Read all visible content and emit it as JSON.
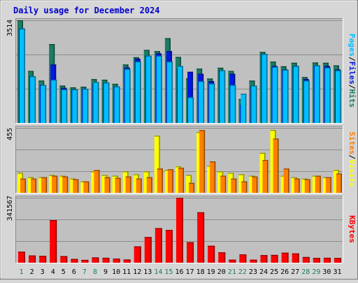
{
  "chart_data": [
    {
      "type": "bar",
      "title": "Daily usage for December 2024",
      "categories": [
        "1",
        "2",
        "3",
        "4",
        "5",
        "6",
        "7",
        "8",
        "9",
        "10",
        "11",
        "12",
        "13",
        "14",
        "15",
        "16",
        "17",
        "18",
        "19",
        "20",
        "21",
        "22",
        "23",
        "24",
        "25",
        "26",
        "27",
        "28",
        "29",
        "30",
        "31"
      ],
      "weekend_days": [
        "1",
        "7",
        "8",
        "14",
        "15",
        "21",
        "22",
        "28",
        "29"
      ],
      "ymax_label": "3514",
      "ylim": [
        0,
        3514
      ],
      "legend": [
        "Pages",
        "Files",
        "Hits"
      ],
      "series": [
        {
          "name": "Hits",
          "color": "#1b7c62",
          "values": [
            3514,
            1780,
            1450,
            2700,
            1280,
            1220,
            1240,
            1500,
            1480,
            1340,
            2000,
            2250,
            2500,
            2460,
            2900,
            2260,
            1530,
            1860,
            1520,
            1890,
            1780,
            820,
            1450,
            2430,
            2100,
            1940,
            2060,
            1570,
            2070,
            2060,
            1970
          ]
        },
        {
          "name": "Files",
          "color": "#0018e0",
          "values": [
            3230,
            1600,
            1300,
            2000,
            1200,
            1150,
            1170,
            1350,
            1380,
            1250,
            1900,
            2200,
            2300,
            2380,
            2460,
            1860,
            1750,
            1680,
            1430,
            1800,
            1680,
            620,
            1250,
            2360,
            1950,
            1830,
            1950,
            1500,
            1960,
            1950,
            1830
          ]
        },
        {
          "name": "Pages",
          "color": "#00bfff",
          "values": [
            3230,
            1600,
            1300,
            1480,
            1150,
            1150,
            1170,
            1400,
            1380,
            1250,
            1850,
            2100,
            2300,
            2300,
            2100,
            1950,
            880,
            1430,
            1350,
            1800,
            1300,
            1000,
            1280,
            2360,
            1920,
            1820,
            1950,
            1450,
            1970,
            1900,
            1800
          ]
        }
      ]
    },
    {
      "type": "bar",
      "ymax_label": "455",
      "ylim": [
        0,
        455
      ],
      "legend": [
        "Sites",
        "Visits"
      ],
      "series": [
        {
          "name": "Visits",
          "color": "#ffff00",
          "values": [
            140,
            110,
            110,
            125,
            120,
            100,
            80,
            150,
            125,
            120,
            150,
            130,
            150,
            400,
            160,
            185,
            125,
            425,
            190,
            150,
            140,
            130,
            120,
            280,
            440,
            120,
            110,
            100,
            120,
            110,
            160
          ]
        },
        {
          "name": "Sites",
          "color": "#ff8000",
          "values": [
            100,
            100,
            110,
            120,
            115,
            95,
            80,
            160,
            110,
            105,
            115,
            100,
            110,
            170,
            165,
            175,
            70,
            440,
            220,
            120,
            100,
            80,
            115,
            230,
            380,
            170,
            100,
            95,
            120,
            110,
            135
          ]
        }
      ]
    },
    {
      "type": "bar",
      "ymax_label": "341567",
      "ylim": [
        0,
        341567
      ],
      "legend": [
        "KBytes"
      ],
      "series": [
        {
          "name": "KBytes",
          "color": "#ff0000",
          "values": [
            58000,
            38000,
            36000,
            224000,
            35000,
            20000,
            15000,
            28000,
            26000,
            22000,
            17000,
            86000,
            135000,
            182000,
            172000,
            341567,
            108000,
            265000,
            89000,
            55000,
            16000,
            44000,
            16000,
            40000,
            41000,
            53000,
            49000,
            30000,
            25000,
            26000,
            25000
          ]
        }
      ]
    }
  ]
}
